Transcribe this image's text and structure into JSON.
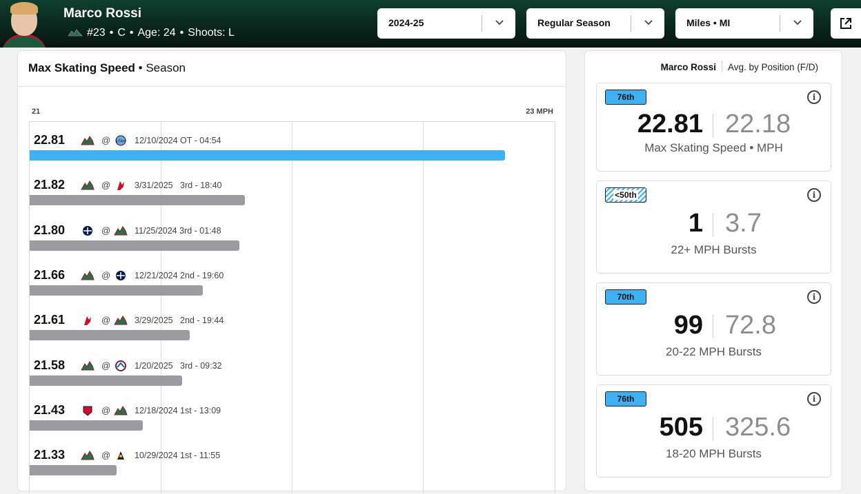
{
  "player": {
    "name": "Marco Rossi",
    "number": "#23",
    "position": "C",
    "age": "Age: 24",
    "shoots": "Shoots: L"
  },
  "filters": {
    "season": "2024-25",
    "game_type": "Regular Season",
    "units": "Miles • MI"
  },
  "chart_panel": {
    "title_bold": "Max Skating Speed",
    "title_rest": " • Season",
    "axis_min": "21",
    "axis_max": "23 MPH"
  },
  "chart_data": {
    "type": "bar",
    "xlim": [
      21,
      23
    ],
    "values": [
      22.81,
      21.82,
      21.8,
      21.66,
      21.61,
      21.58,
      21.43,
      21.33
    ],
    "rows": [
      {
        "value": "22.81",
        "away": "wild",
        "home": "utah",
        "info": "12/10/2024 OT - 04:54",
        "best": true
      },
      {
        "value": "21.82",
        "away": "wild",
        "home": "devils",
        "info": "3/31/2025   3rd - 18:40",
        "best": false
      },
      {
        "value": "21.80",
        "away": "jets",
        "home": "wild",
        "info": "11/25/2024 3rd - 01:48",
        "best": false
      },
      {
        "value": "21.66",
        "away": "wild",
        "home": "jets",
        "info": "12/21/2024 2nd - 19:60",
        "best": false
      },
      {
        "value": "21.61",
        "away": "devils",
        "home": "wild",
        "info": "3/29/2025   2nd - 19:44",
        "best": false
      },
      {
        "value": "21.58",
        "away": "wild",
        "home": "avalanche",
        "info": "1/20/2025   3rd - 09:32",
        "best": false
      },
      {
        "value": "21.43",
        "away": "panthers",
        "home": "wild",
        "info": "12/18/2024 1st - 13:09",
        "best": false
      },
      {
        "value": "21.33",
        "away": "wild",
        "home": "penguins",
        "info": "10/29/2024 1st - 11:55",
        "best": false
      }
    ],
    "at_symbol": "@"
  },
  "summary": {
    "legend_player": "Marco Rossi",
    "legend_avg": "Avg. by Position (F/D)",
    "cards": [
      {
        "percentile": "76th",
        "hatched": false,
        "value": "22.81",
        "avg": "22.18",
        "label": "Max Skating Speed • MPH"
      },
      {
        "percentile": "<50th",
        "hatched": true,
        "value": "1",
        "avg": "3.7",
        "label": "22+ MPH Bursts"
      },
      {
        "percentile": "70th",
        "hatched": false,
        "value": "99",
        "avg": "72.8",
        "label": "20-22 MPH Bursts"
      },
      {
        "percentile": "76th",
        "hatched": false,
        "value": "505",
        "avg": "325.6",
        "label": "18-20 MPH Bursts"
      }
    ]
  },
  "colors": {
    "best_bar": "#3eb0f3",
    "bar": "#9b9b9f",
    "header_dark": "#06140f"
  }
}
